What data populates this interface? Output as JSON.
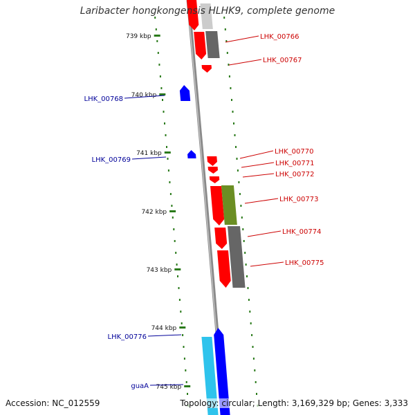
{
  "map": {
    "title": "Laribacter hongkongensis HLHK9, complete genome",
    "accession_label": "Accession: NC_012559",
    "genome_info": "Topology: circular; Length: 3,169,329 bp; Genes: 3,333"
  },
  "colors": {
    "backbone": "#8a8a8a",
    "ticks": "#2a7a1a",
    "forward_cds": "#ff0000",
    "reverse_cds": "#0000ff",
    "rna": "#2ec3ec",
    "cog_gray": "#666666",
    "cog_olive": "#6b8e23",
    "cog_light": "#cccccc",
    "label_forward": "#cc0000",
    "label_reverse": "#000099"
  },
  "ticks": [
    {
      "label": "739 kbp"
    },
    {
      "label": "740 kbp"
    },
    {
      "label": "741 kbp"
    },
    {
      "label": "742 kbp"
    },
    {
      "label": "743 kbp"
    },
    {
      "label": "744 kbp"
    },
    {
      "label": "745 kbp"
    }
  ],
  "genes": [
    {
      "label": "LHK_00766",
      "strand": "+"
    },
    {
      "label": "LHK_00767",
      "strand": "+"
    },
    {
      "label": "LHK_00768",
      "strand": "-"
    },
    {
      "label": "LHK_00769",
      "strand": "-"
    },
    {
      "label": "LHK_00770",
      "strand": "+"
    },
    {
      "label": "LHK_00771",
      "strand": "+"
    },
    {
      "label": "LHK_00772",
      "strand": "+"
    },
    {
      "label": "LHK_00773",
      "strand": "+"
    },
    {
      "label": "LHK_00774",
      "strand": "+"
    },
    {
      "label": "LHK_00775",
      "strand": "+"
    },
    {
      "label": "LHK_00776",
      "strand": "-"
    },
    {
      "label": "guaA",
      "strand": "-"
    }
  ]
}
